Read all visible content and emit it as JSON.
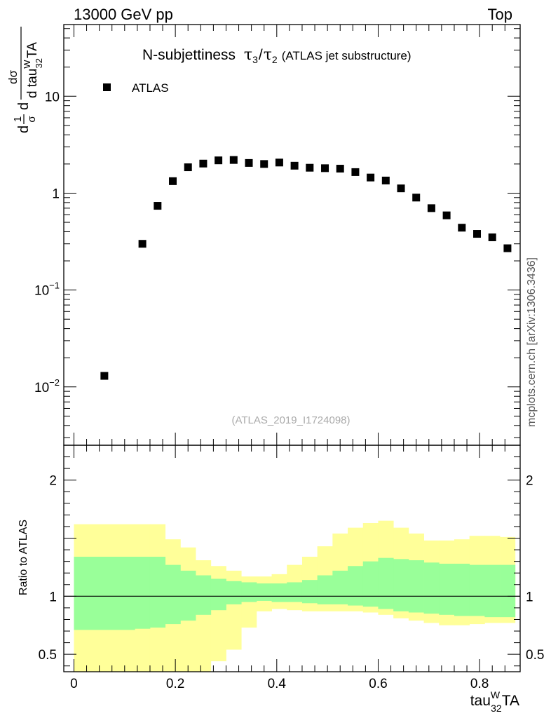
{
  "header": {
    "energy_label": "13000 GeV pp",
    "process_label": "Top"
  },
  "side_label": "mcplots.cern.ch [arXiv:1306.3436]",
  "chart_data": [
    {
      "type": "scatter",
      "panel": "main",
      "title_prefix": "N-subjettiness",
      "title_tau_a": "τ",
      "title_tau_a_sub": "3",
      "title_slash": "/",
      "title_tau_b": "τ",
      "title_tau_b_sub": "2",
      "title_suffix": "(ATLAS jet substructure)",
      "ylabel_prefix": "d",
      "ylabel_frac_num": "1",
      "ylabel_frac_den": "σ",
      "ylabel_d2": "d",
      "ylabel_num": "dσ",
      "ylabel_den_d": "d tau",
      "ylabel_den_sup": "W",
      "ylabel_den_sub": "32",
      "ylabel_den_end": "TA",
      "yscale": "log",
      "ylim": [
        0.0025,
        55
      ],
      "xlim": [
        -0.02,
        0.88
      ],
      "y_ticks": [
        {
          "value": 0.01,
          "base": "10",
          "exp": "−2"
        },
        {
          "value": 0.1,
          "base": "10",
          "exp": "−1"
        },
        {
          "value": 1,
          "base": "1",
          "exp": ""
        },
        {
          "value": 10,
          "base": "10",
          "exp": ""
        }
      ],
      "legend": {
        "label": "ATLAS",
        "position": "top-left"
      },
      "watermark": "(ATLAS_2019_I1724098)",
      "series": [
        {
          "name": "ATLAS",
          "marker": "square",
          "x": [
            0.06,
            0.135,
            0.165,
            0.195,
            0.225,
            0.255,
            0.285,
            0.315,
            0.345,
            0.375,
            0.405,
            0.435,
            0.465,
            0.495,
            0.525,
            0.555,
            0.585,
            0.615,
            0.645,
            0.675,
            0.705,
            0.735,
            0.765,
            0.795,
            0.825,
            0.855
          ],
          "y": [
            0.013,
            0.3,
            0.74,
            1.33,
            1.85,
            2.02,
            2.18,
            2.2,
            2.05,
            2.0,
            2.07,
            1.92,
            1.83,
            1.81,
            1.79,
            1.65,
            1.45,
            1.35,
            1.12,
            0.9,
            0.7,
            0.59,
            0.44,
            0.38,
            0.35,
            0.27
          ]
        }
      ]
    },
    {
      "type": "area",
      "panel": "ratio",
      "ylabel": "Ratio to ATLAS",
      "xlabel_main": "tau",
      "xlabel_sup": "W",
      "xlabel_sub": "32",
      "xlabel_end": "TA",
      "ylim": [
        0.35,
        2.3
      ],
      "xlim": [
        -0.02,
        0.88
      ],
      "x_ticks": [
        {
          "value": 0,
          "label": "0"
        },
        {
          "value": 0.2,
          "label": "0.2"
        },
        {
          "value": 0.4,
          "label": "0.4"
        },
        {
          "value": 0.6,
          "label": "0.6"
        },
        {
          "value": 0.8,
          "label": "0.8"
        }
      ],
      "y_ticks": [
        {
          "value": 0.5,
          "label": "0.5"
        },
        {
          "value": 1,
          "label": "1"
        },
        {
          "value": 2,
          "label": "2"
        }
      ],
      "reference_line": 1,
      "colors": {
        "inner_band": "#99ff99",
        "outer_band": "#ffff99",
        "points": "#000000"
      },
      "bin_edges": [
        0.0,
        0.12,
        0.15,
        0.18,
        0.21,
        0.24,
        0.27,
        0.3,
        0.33,
        0.36,
        0.39,
        0.42,
        0.45,
        0.48,
        0.51,
        0.54,
        0.57,
        0.6,
        0.63,
        0.66,
        0.69,
        0.72,
        0.75,
        0.78,
        0.81,
        0.84,
        0.87
      ],
      "inner_low": [
        0.71,
        0.72,
        0.73,
        0.76,
        0.79,
        0.84,
        0.88,
        0.93,
        0.95,
        0.96,
        0.95,
        0.95,
        0.94,
        0.93,
        0.93,
        0.92,
        0.91,
        0.89,
        0.87,
        0.86,
        0.85,
        0.84,
        0.83,
        0.83,
        0.82,
        0.82
      ],
      "inner_high": [
        1.34,
        1.34,
        1.34,
        1.27,
        1.22,
        1.18,
        1.15,
        1.13,
        1.12,
        1.11,
        1.11,
        1.12,
        1.14,
        1.18,
        1.22,
        1.26,
        1.3,
        1.33,
        1.32,
        1.31,
        1.29,
        1.28,
        1.28,
        1.27,
        1.27,
        1.27
      ],
      "outer_low": [
        0.07,
        0.07,
        0.07,
        0.07,
        0.07,
        0.07,
        0.44,
        0.54,
        0.73,
        0.87,
        0.89,
        0.88,
        0.87,
        0.87,
        0.87,
        0.87,
        0.86,
        0.84,
        0.81,
        0.79,
        0.77,
        0.75,
        0.75,
        0.76,
        0.77,
        0.77
      ],
      "outer_high": [
        1.62,
        1.62,
        1.62,
        1.49,
        1.42,
        1.31,
        1.26,
        1.22,
        1.17,
        1.17,
        1.19,
        1.27,
        1.34,
        1.43,
        1.54,
        1.59,
        1.63,
        1.65,
        1.59,
        1.54,
        1.48,
        1.48,
        1.49,
        1.52,
        1.52,
        1.51
      ]
    }
  ]
}
